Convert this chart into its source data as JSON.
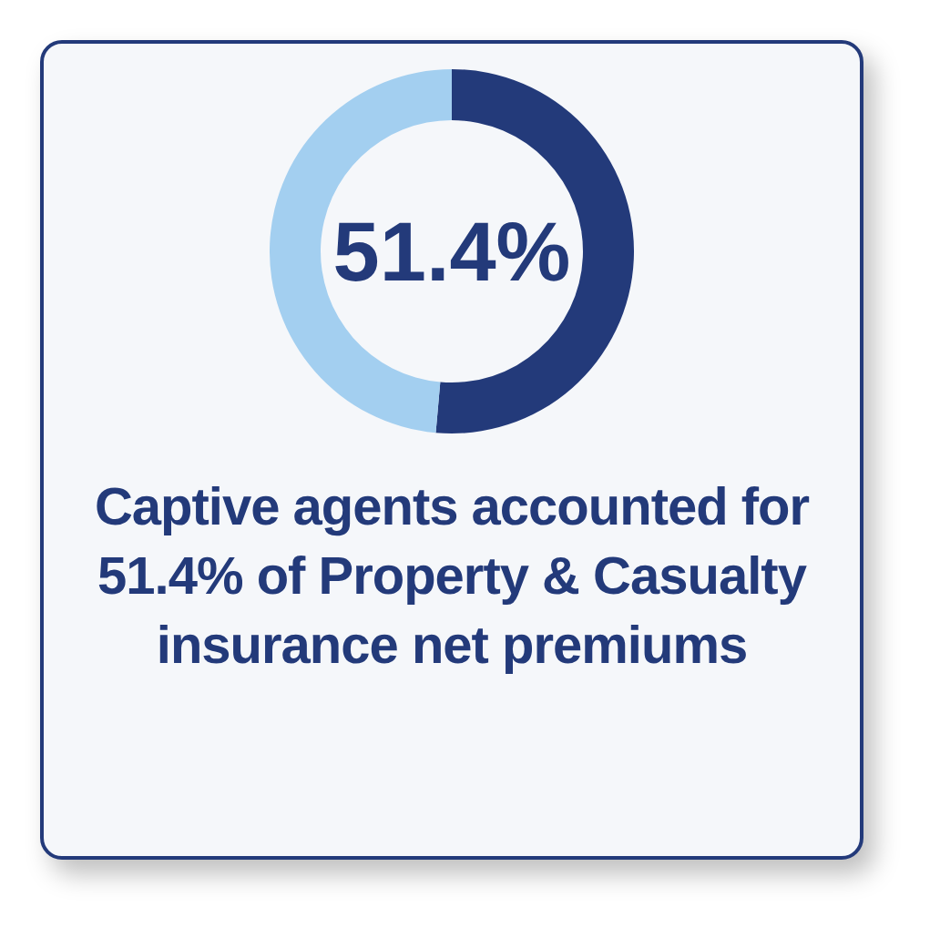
{
  "chart_data": {
    "type": "donut",
    "title": "Captive agents accounted for 51.4% of Property & Casualty insurance net premiums",
    "categories": [
      null,
      null
    ],
    "values": [
      51.4,
      48.6
    ],
    "colors": [
      "#233a7a",
      "#a3cff0"
    ],
    "value_labels": [
      "51.4%",
      null
    ]
  }
}
